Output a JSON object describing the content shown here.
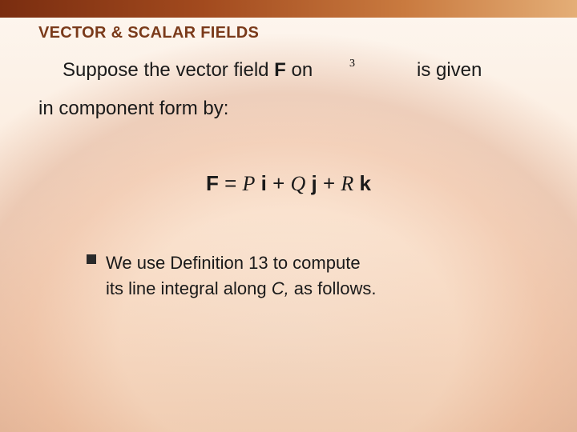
{
  "header": {
    "title": "VECTOR & SCALAR FIELDS",
    "fontsize": 20,
    "color": "#7a3a1a"
  },
  "intro": {
    "part1_a": "Suppose the vector field ",
    "part1_F": "F",
    "part1_b": " on",
    "r3_superscript": "3",
    "part1_c": "is given",
    "part2": "in component form by:",
    "fontsize": 24,
    "color": "#1a1a1a"
  },
  "formula": {
    "F": "F",
    "eq": " = ",
    "P": "P",
    "i": " i",
    "plus1": " + ",
    "Q": "Q",
    "j": " j",
    "plus2": " + ",
    "R": "R",
    "k": " k",
    "fontsize": 26,
    "color": "#1a1a1a"
  },
  "bullet": {
    "line1": "We use Definition 13 to compute",
    "line2_a": "its line integral along ",
    "line2_C": "C,",
    "line2_b": " as follows.",
    "fontsize": 22,
    "color": "#1a1a1a"
  },
  "styling": {
    "topbar_gradient": [
      "#7a2d10",
      "#a24a1e",
      "#c97a3f",
      "#e4ae77"
    ],
    "background_base": "#fcefe3",
    "slide_width": 720,
    "slide_height": 540
  }
}
